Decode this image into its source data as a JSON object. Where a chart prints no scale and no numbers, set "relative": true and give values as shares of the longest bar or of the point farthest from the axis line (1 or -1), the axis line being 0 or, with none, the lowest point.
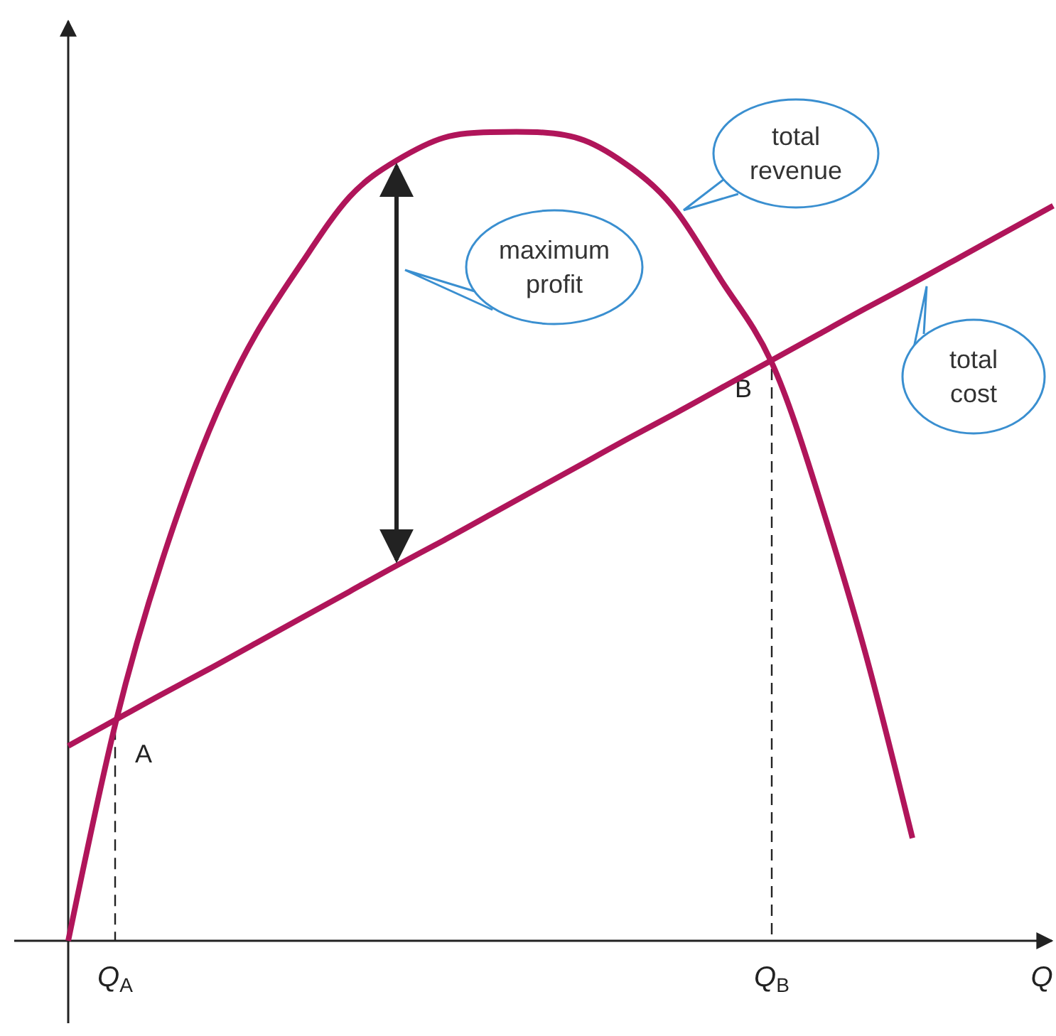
{
  "chart_data": {
    "type": "line",
    "relative": true,
    "xlabel": "Q",
    "tick_labels": "x",
    "legend": false,
    "grid": false,
    "marker": "none",
    "line_style": "solid",
    "categories": [
      null,
      "Q$_{A}$",
      null,
      null,
      null,
      null,
      null,
      null,
      null,
      null,
      null,
      null,
      null,
      null,
      null,
      "Q$_{B}$",
      null,
      null,
      null,
      null,
      null,
      null
    ],
    "series": [
      {
        "name": "total revenue",
        "color": "#b0155a",
        "values": [
          0,
          0.267,
          0.47,
          0.63,
          0.75,
          0.84,
          0.92,
          0.965,
          0.993,
          1.0,
          1.0,
          0.99,
          0.956,
          0.9,
          0.81,
          0.715,
          0.55,
          0.355,
          0.127,
          null,
          null,
          null
        ]
      },
      {
        "name": "total cost",
        "color": "#b0155a",
        "values": [
          0.241,
          0.273,
          0.305,
          0.336,
          0.368,
          0.4,
          0.432,
          0.464,
          0.495,
          0.527,
          0.559,
          0.591,
          0.623,
          0.654,
          0.686,
          0.718,
          0.75,
          0.782,
          0.813,
          0.845,
          0.877,
          0.909
        ]
      }
    ],
    "annotations": [
      "maximum profit",
      {
        "text": "A",
        "x": "Q$_{A}$",
        "y": 0.273
      },
      {
        "text": "B",
        "x": "Q$_{B}$",
        "y": 0.718
      }
    ]
  }
}
